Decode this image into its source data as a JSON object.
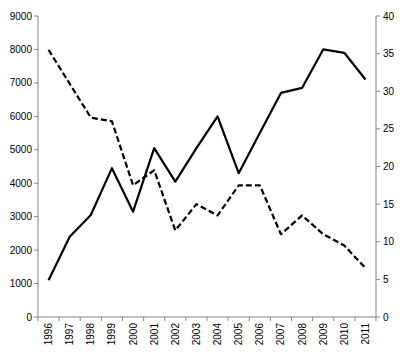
{
  "chart_data": {
    "type": "line",
    "categories": [
      "1996",
      "1997",
      "1998",
      "1999",
      "2000",
      "2001",
      "2002",
      "2003",
      "2004",
      "2005",
      "2006",
      "2007",
      "2008",
      "2009",
      "2010",
      "2011"
    ],
    "series": [
      {
        "color": "#000000",
        "line_style": "solid",
        "values": [
          1100,
          2400,
          3050,
          4450,
          3150,
          5050,
          4050,
          5050,
          6000,
          4300,
          5500,
          6700,
          6850,
          8000,
          7900,
          7100
        ]
      },
      {
        "color": "#000000",
        "line_style": "dashed",
        "axis": "y2",
        "values": [
          35.5,
          31,
          26.5,
          26,
          17.5,
          19.5,
          11.5,
          15,
          13.5,
          17.5,
          17.5,
          11,
          13.5,
          11,
          9.5,
          6.5
        ]
      }
    ],
    "ylim": [
      0,
      9000
    ],
    "yticks": [
      0,
      1000,
      2000,
      3000,
      4000,
      5000,
      6000,
      7000,
      8000,
      9000
    ],
    "y2lim": [
      0,
      40
    ],
    "y2ticks": [
      0,
      5,
      10,
      15,
      20,
      25,
      30,
      35,
      40
    ],
    "grid": false
  }
}
